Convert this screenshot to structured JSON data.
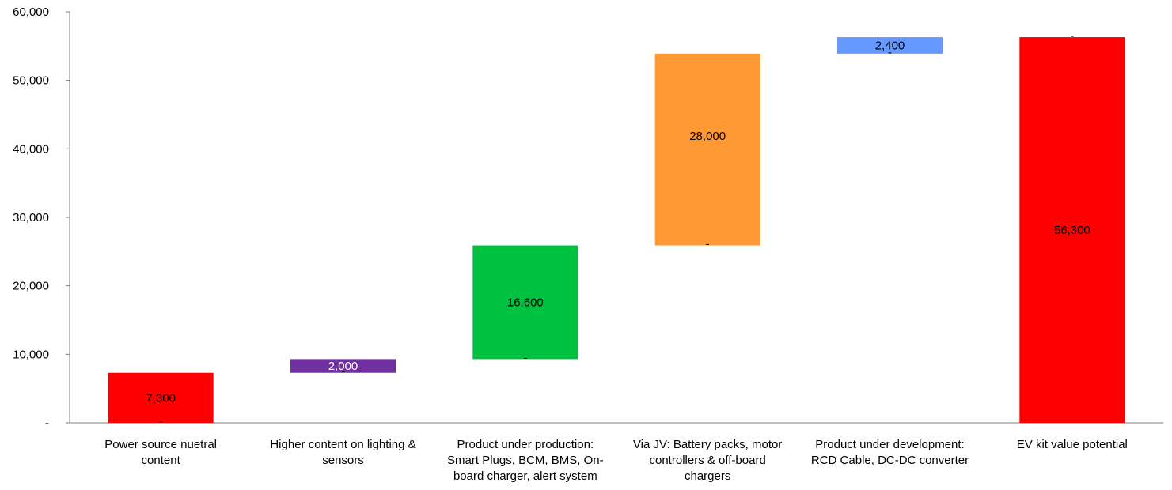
{
  "chart_data": {
    "type": "bar",
    "subtype": "waterfall",
    "title": "",
    "xlabel": "",
    "ylabel": "",
    "ylim": [
      0,
      60000
    ],
    "yticks": [
      0,
      10000,
      20000,
      30000,
      40000,
      50000,
      60000
    ],
    "ytick_labels": [
      "-",
      "10,000",
      "20,000",
      "30,000",
      "40,000",
      "50,000",
      "60,000"
    ],
    "grid": false,
    "legend": "none",
    "categories": [
      [
        "Power source nuetral",
        "content"
      ],
      [
        "Higher content on lighting &",
        "sensors"
      ],
      [
        "Product under production:",
        "Smart Plugs, BCM, BMS, On-",
        "board charger, alert system"
      ],
      [
        "Via JV: Battery packs, motor",
        "controllers & off-board",
        "chargers"
      ],
      [
        "Product under development:",
        "RCD Cable, DC-DC converter"
      ],
      [
        "EV kit value potential"
      ]
    ],
    "bars": [
      {
        "base": 0,
        "value": 7300,
        "label": "7,300",
        "color": "#ff0000",
        "label_color": "#000000",
        "label_pos": "mid"
      },
      {
        "base": 7300,
        "value": 2000,
        "label": "2,000",
        "color": "#7030a0",
        "label_color": "#ffffff",
        "label_pos": "mid"
      },
      {
        "base": 9300,
        "value": 16600,
        "label": "16,600",
        "color": "#00c040",
        "label_color": "#000000",
        "label_pos": "mid"
      },
      {
        "base": 25900,
        "value": 28000,
        "label": "28,000",
        "color": "#ff9933",
        "label_color": "#000000",
        "label_pos": "upper"
      },
      {
        "base": 53900,
        "value": 2400,
        "label": "2,400",
        "color": "#6699ff",
        "label_color": "#000000",
        "label_pos": "mid"
      },
      {
        "base": 0,
        "value": 56300,
        "label": "56,300",
        "color": "#ff0000",
        "label_color": "#000000",
        "label_pos": "mid"
      }
    ],
    "base_markers": [
      "-",
      "-",
      "-",
      "-",
      "-",
      "-"
    ]
  }
}
